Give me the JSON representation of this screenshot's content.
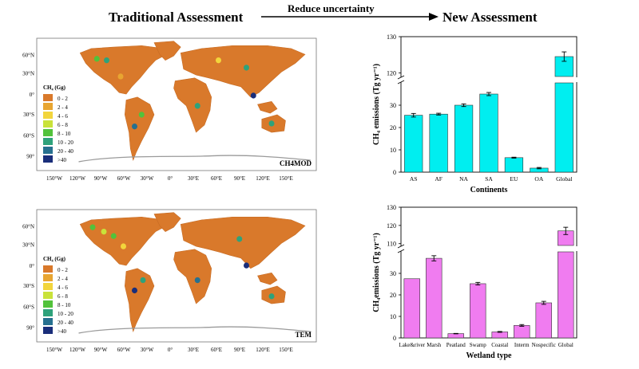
{
  "header": {
    "left_title": "Traditional Assessment",
    "arrow_label": "Reduce uncertainty",
    "right_title": "New Assessment"
  },
  "maps": [
    {
      "model_label": "CH4MOD",
      "legend_title": "CH₄ (Gg)",
      "legend_items": [
        "0 - 2",
        "2 - 4",
        "4 - 6",
        "6 - 8",
        "8 - 10",
        "10 - 20",
        "20 - 40",
        ">40"
      ],
      "legend_colors": [
        "#d9792b",
        "#e8a531",
        "#f2d53c",
        "#c9e23a",
        "#52c23b",
        "#2fa27b",
        "#27708f",
        "#1a2e7a"
      ],
      "lat_labels": [
        "60°N",
        "30°N",
        "0°",
        "30°S",
        "60°S",
        "90°"
      ],
      "lon_labels": [
        "150°W",
        "120°W",
        "90°W",
        "60°W",
        "30°W",
        "0°",
        "30°E",
        "60°E",
        "90°E",
        "120°E",
        "150°E"
      ]
    },
    {
      "model_label": "TEM",
      "legend_title": "CH₄ (Gg)",
      "legend_items": [
        "0 - 2",
        "2 - 4",
        "4 - 6",
        "6 - 8",
        "8 - 10",
        "10 - 20",
        "20 - 40",
        ">40"
      ],
      "legend_colors": [
        "#d9792b",
        "#e8a531",
        "#f2d53c",
        "#c9e23a",
        "#52c23b",
        "#2fa27b",
        "#27708f",
        "#1a2e7a"
      ],
      "lat_labels": [
        "60°N",
        "30°N",
        "0°",
        "30°S",
        "60°S",
        "90°"
      ],
      "lon_labels": [
        "150°W",
        "120°W",
        "90°W",
        "60°W",
        "30°W",
        "0°",
        "30°E",
        "60°E",
        "90°E",
        "120°E",
        "150°E"
      ]
    }
  ],
  "chart_data": [
    {
      "type": "bar",
      "categories": [
        "AS",
        "AF",
        "NA",
        "SA",
        "EU",
        "OA",
        "Global"
      ],
      "values": [
        25.5,
        26,
        30,
        35,
        6.5,
        1.8,
        124.5
      ],
      "errors": [
        0.8,
        0.4,
        0.6,
        0.7,
        0.2,
        0.3,
        1.3
      ],
      "bar_color": "#00eef0",
      "xlabel": "Continents",
      "ylabel": "CH₄ emissions (Tg yr⁻¹)",
      "lower_ticks": [
        0,
        10,
        20,
        30
      ],
      "upper_ticks": [
        120,
        130
      ],
      "axis_break": [
        40,
        119
      ]
    },
    {
      "type": "bar",
      "categories": [
        "Lake&river",
        "Marsh",
        "Peatland",
        "Swamp",
        "Coastal",
        "Interm",
        "Nospecific",
        "Global"
      ],
      "values": [
        27.5,
        37,
        2,
        25.2,
        2.8,
        5.8,
        16.3,
        117
      ],
      "errors": [
        0,
        1.2,
        0.1,
        0.6,
        0.2,
        0.4,
        0.7,
        2
      ],
      "bar_color": "#f07cf0",
      "xlabel": "Wetland type",
      "ylabel": "CH₄emissions (Tg yr⁻¹)",
      "lower_ticks": [
        0,
        10,
        20,
        30
      ],
      "upper_ticks": [
        110,
        120,
        130
      ],
      "axis_break": [
        40,
        109
      ]
    }
  ]
}
